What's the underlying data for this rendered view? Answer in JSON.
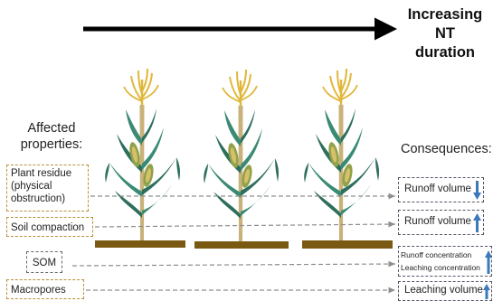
{
  "trend": {
    "line1": "Increasing",
    "line2": "NT",
    "line3": "duration"
  },
  "headings": {
    "affected_line1": "Affected",
    "affected_line2": "properties:",
    "consequences": "Consequences:"
  },
  "properties": {
    "plant_residue": {
      "line1": "Plant residue",
      "line2": "(physical",
      "line3": "obstruction)"
    },
    "soil_compaction": "Soil compaction",
    "som": "SOM",
    "macropores": "Macropores"
  },
  "consequences": {
    "runoff_volume_1": {
      "label": "Runoff volume",
      "direction": "down"
    },
    "runoff_volume_2": {
      "label": "Runoff volume",
      "direction": "up"
    },
    "concentrations": {
      "line1": "Runoff concentration",
      "line2": "Leaching concentration",
      "direction": "up"
    },
    "leaching_volume": {
      "label": "Leaching volume",
      "direction": "up"
    }
  },
  "colors": {
    "stalk": "#c9b27a",
    "leaf_dark": "#2e6e5e",
    "leaf_mid": "#3a8a74",
    "ear": "#8fa24a",
    "tassel": "#e0b73a",
    "soil": "#7a5a12",
    "property_border": "#b8903a",
    "arrow_blue": "#3b79b8",
    "dashed_line": "#8e8e8e"
  }
}
